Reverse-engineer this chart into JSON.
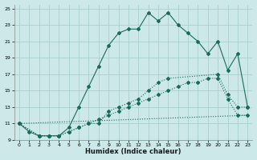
{
  "xlabel": "Humidex (Indice chaleur)",
  "bg_color": "#cce8e8",
  "grid_color": "#aacfcf",
  "line_color": "#1a6b5a",
  "xlim": [
    -0.5,
    23.5
  ],
  "ylim": [
    9,
    25.5
  ],
  "xticks": [
    0,
    1,
    2,
    3,
    4,
    5,
    6,
    7,
    8,
    9,
    10,
    11,
    12,
    13,
    14,
    15,
    16,
    17,
    18,
    19,
    20,
    21,
    22,
    23
  ],
  "yticks": [
    9,
    11,
    13,
    15,
    17,
    19,
    21,
    23,
    25
  ],
  "line1_x": [
    0,
    1,
    2,
    3,
    4,
    5,
    6,
    7,
    8,
    9,
    10,
    11,
    12,
    13,
    14,
    15,
    16,
    17,
    18,
    19,
    20,
    21,
    22,
    23
  ],
  "line1_y": [
    11,
    10,
    9.5,
    9.5,
    9.5,
    10.5,
    13,
    15.5,
    18,
    20.5,
    22,
    22.5,
    22.5,
    24.5,
    23.5,
    24.5,
    23,
    22,
    21,
    19.5,
    21,
    17.5,
    19.5,
    13
  ],
  "line2_x": [
    0,
    2,
    3,
    4,
    5,
    6,
    7,
    8,
    9,
    10,
    11,
    12,
    13,
    14,
    15,
    20,
    21,
    22,
    23
  ],
  "line2_y": [
    11,
    9.5,
    9.5,
    9.5,
    10,
    10.5,
    11,
    11,
    12.5,
    13,
    13.5,
    14,
    15,
    16,
    16.5,
    17,
    14.5,
    13,
    13
  ],
  "line3_x": [
    0,
    23
  ],
  "line3_y": [
    11,
    12
  ],
  "line4_x": [
    0,
    2,
    3,
    4,
    5,
    6,
    7,
    8,
    9,
    10,
    11,
    12,
    13,
    14,
    15,
    16,
    17,
    18,
    19,
    20,
    21,
    22,
    23
  ],
  "line4_y": [
    11,
    9.5,
    9.5,
    9.5,
    10,
    10.5,
    11,
    11.5,
    12,
    12.5,
    13,
    13.5,
    14,
    14.5,
    15,
    15.5,
    16,
    16,
    16.5,
    16.5,
    14,
    12,
    12
  ]
}
